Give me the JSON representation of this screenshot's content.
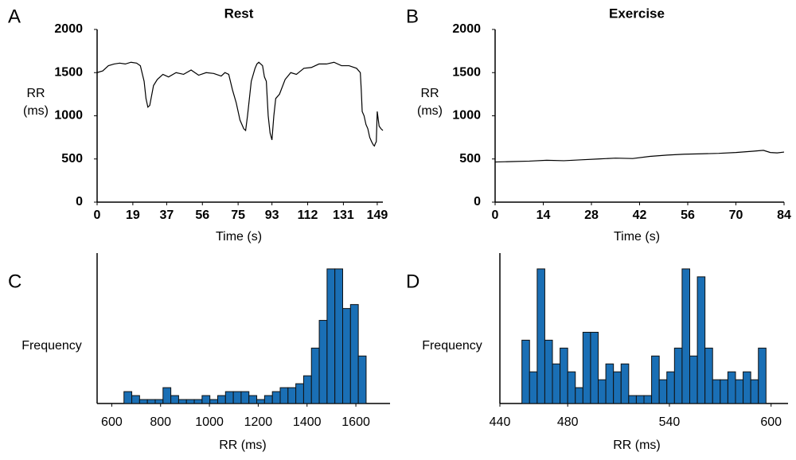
{
  "chart_data": [
    {
      "type": "line",
      "label": "A",
      "title": "Rest",
      "ylabel": [
        "RR",
        "(ms)"
      ],
      "xlabel": "Time (s)",
      "color": "#000000",
      "xlim": [
        0,
        152
      ],
      "xticks": [
        0,
        19,
        37,
        56,
        75,
        93,
        112,
        131,
        149
      ],
      "ylim": [
        0,
        2000
      ],
      "yticks": [
        0,
        500,
        1000,
        1500,
        2000
      ],
      "x": [
        0,
        3,
        6,
        9,
        12,
        15,
        18,
        21,
        23,
        25,
        26,
        27,
        28,
        30,
        32,
        35,
        38,
        42,
        46,
        50,
        54,
        58,
        62,
        66,
        68,
        70,
        72,
        74,
        76,
        78,
        79,
        80,
        82,
        84,
        85,
        86,
        88,
        89,
        90,
        91,
        92,
        93,
        94,
        95,
        97,
        100,
        103,
        106,
        110,
        114,
        118,
        122,
        126,
        130,
        134,
        138,
        140,
        140.5,
        141,
        142,
        143,
        144,
        145,
        146,
        147,
        147.5,
        148,
        148.5,
        149,
        150,
        151,
        152
      ],
      "values": [
        1500,
        1520,
        1580,
        1600,
        1610,
        1600,
        1620,
        1610,
        1580,
        1400,
        1200,
        1100,
        1120,
        1350,
        1420,
        1480,
        1450,
        1500,
        1480,
        1530,
        1470,
        1500,
        1490,
        1460,
        1500,
        1480,
        1300,
        1150,
        950,
        850,
        830,
        1000,
        1400,
        1550,
        1600,
        1620,
        1580,
        1450,
        1400,
        1000,
        800,
        720,
        1000,
        1200,
        1250,
        1420,
        1500,
        1480,
        1550,
        1560,
        1600,
        1600,
        1620,
        1580,
        1580,
        1550,
        1500,
        1300,
        1050,
        1000,
        900,
        850,
        750,
        700,
        660,
        650,
        680,
        700,
        1050,
        880,
        850,
        830
      ]
    },
    {
      "type": "line",
      "label": "B",
      "title": "Exercise",
      "ylabel": [
        "RR",
        "(ms)"
      ],
      "xlabel": "Time (s)",
      "color": "#000000",
      "xlim": [
        0,
        84
      ],
      "xticks": [
        0,
        14,
        28,
        42,
        56,
        70,
        84
      ],
      "ylim": [
        0,
        2000
      ],
      "yticks": [
        0,
        500,
        1000,
        1500,
        2000
      ],
      "x": [
        0,
        5,
        10,
        15,
        20,
        25,
        30,
        35,
        40,
        45,
        50,
        55,
        60,
        65,
        70,
        75,
        78,
        80,
        82,
        84
      ],
      "values": [
        465,
        470,
        475,
        485,
        480,
        490,
        500,
        510,
        505,
        530,
        545,
        555,
        560,
        565,
        575,
        590,
        600,
        575,
        570,
        580
      ]
    },
    {
      "type": "histogram",
      "label": "C",
      "ylabel": "Frequency",
      "xlabel": "RR (ms)",
      "color": "#1a6fb5",
      "xlim": [
        540,
        1740
      ],
      "xticks": [
        600,
        800,
        1000,
        1200,
        1400,
        1600
      ],
      "ylim": [
        0,
        38
      ],
      "bins": [
        650,
        682,
        714,
        746,
        778,
        810,
        842,
        874,
        906,
        938,
        970,
        1002,
        1034,
        1066,
        1098,
        1130,
        1162,
        1194,
        1226,
        1258,
        1290,
        1322,
        1354,
        1386,
        1418,
        1450,
        1482,
        1514,
        1546,
        1578,
        1610,
        1642
      ],
      "values": [
        3,
        2,
        1,
        1,
        1,
        4,
        2,
        1,
        1,
        1,
        2,
        1,
        2,
        3,
        3,
        3,
        2,
        1,
        2,
        3,
        4,
        4,
        5,
        7,
        14,
        21,
        34,
        34,
        24,
        25,
        12
      ]
    },
    {
      "type": "histogram",
      "label": "D",
      "ylabel": "Frequency",
      "xlabel": "RR (ms)",
      "color": "#1a6fb5",
      "xlim": [
        440,
        610
      ],
      "xticks": [
        440,
        480,
        540,
        600
      ],
      "ylim": [
        0,
        19
      ],
      "bins": [
        453,
        457.5,
        462,
        466.5,
        471,
        475.5,
        480,
        484.5,
        489,
        493.5,
        498,
        502.5,
        507,
        511.5,
        516,
        520.5,
        525,
        529.5,
        534,
        538.5,
        543,
        547.5,
        552,
        556.5,
        561,
        565.5,
        570,
        574.5,
        579,
        583.5,
        588,
        592.5,
        597
      ],
      "values": [
        8,
        4,
        17,
        8,
        5,
        7,
        4,
        2,
        9,
        9,
        3,
        5,
        4,
        5,
        1,
        1,
        1,
        6,
        3,
        4,
        7,
        17,
        6,
        16,
        7,
        3,
        3,
        4,
        3,
        4,
        3,
        7
      ]
    }
  ]
}
